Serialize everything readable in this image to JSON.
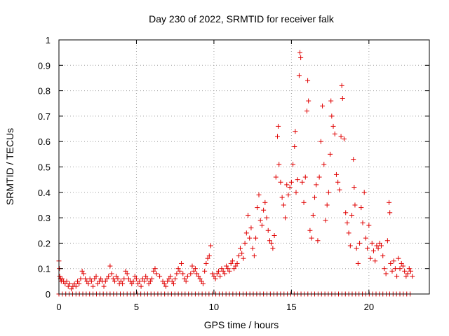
{
  "chart_data": {
    "type": "scatter",
    "title": "Day 230 of 2022, SRMTID for receiver falk",
    "xlabel": "GPS time / hours",
    "ylabel": "SRMTID / TECUs",
    "xlim": [
      0,
      23.9
    ],
    "ylim": [
      0,
      1
    ],
    "xticks": [
      0,
      5,
      10,
      15,
      20
    ],
    "xtick_labels": [
      "0",
      "5",
      "10",
      "15",
      "20"
    ],
    "yticks": [
      0,
      0.1,
      0.2,
      0.3,
      0.4,
      0.5,
      0.6,
      0.7,
      0.8,
      0.9,
      1
    ],
    "ytick_labels": [
      "0",
      "0.1",
      "0.2",
      "0.3",
      "0.4",
      "0.5",
      "0.6",
      "0.7",
      "0.8",
      "0.9",
      "1"
    ],
    "grid": true,
    "marker": "+",
    "color": "#e00000",
    "series": [
      {
        "name": "SRMTID",
        "points": [
          [
            0.0,
            0.13
          ],
          [
            0.03,
            0.1
          ],
          [
            0.05,
            0.07
          ],
          [
            0.1,
            0.06
          ],
          [
            0.15,
            0.05
          ],
          [
            0.2,
            0.06
          ],
          [
            0.3,
            0.05
          ],
          [
            0.4,
            0.04
          ],
          [
            0.5,
            0.05
          ],
          [
            0.6,
            0.03
          ],
          [
            0.7,
            0.04
          ],
          [
            0.8,
            0.02
          ],
          [
            0.9,
            0.03
          ],
          [
            1.0,
            0.04
          ],
          [
            1.1,
            0.03
          ],
          [
            1.2,
            0.05
          ],
          [
            1.3,
            0.04
          ],
          [
            1.4,
            0.06
          ],
          [
            1.5,
            0.09
          ],
          [
            1.6,
            0.08
          ],
          [
            1.7,
            0.06
          ],
          [
            1.8,
            0.05
          ],
          [
            1.9,
            0.04
          ],
          [
            2.0,
            0.06
          ],
          [
            2.1,
            0.05
          ],
          [
            2.2,
            0.03
          ],
          [
            2.3,
            0.06
          ],
          [
            2.4,
            0.07
          ],
          [
            2.5,
            0.04
          ],
          [
            2.6,
            0.05
          ],
          [
            2.7,
            0.06
          ],
          [
            2.8,
            0.05
          ],
          [
            2.9,
            0.03
          ],
          [
            3.0,
            0.05
          ],
          [
            3.1,
            0.06
          ],
          [
            3.2,
            0.07
          ],
          [
            3.3,
            0.11
          ],
          [
            3.4,
            0.08
          ],
          [
            3.5,
            0.06
          ],
          [
            3.6,
            0.05
          ],
          [
            3.7,
            0.07
          ],
          [
            3.8,
            0.06
          ],
          [
            3.9,
            0.04
          ],
          [
            4.0,
            0.05
          ],
          [
            4.1,
            0.04
          ],
          [
            4.2,
            0.06
          ],
          [
            4.3,
            0.09
          ],
          [
            4.4,
            0.08
          ],
          [
            4.5,
            0.06
          ],
          [
            4.6,
            0.05
          ],
          [
            4.7,
            0.04
          ],
          [
            4.8,
            0.05
          ],
          [
            4.9,
            0.07
          ],
          [
            5.0,
            0.06
          ],
          [
            5.1,
            0.04
          ],
          [
            5.2,
            0.05
          ],
          [
            5.3,
            0.03
          ],
          [
            5.4,
            0.06
          ],
          [
            5.5,
            0.05
          ],
          [
            5.6,
            0.07
          ],
          [
            5.7,
            0.06
          ],
          [
            5.8,
            0.04
          ],
          [
            5.9,
            0.05
          ],
          [
            6.0,
            0.06
          ],
          [
            6.1,
            0.09
          ],
          [
            6.2,
            0.1
          ],
          [
            6.3,
            0.08
          ],
          [
            6.5,
            0.07
          ],
          [
            6.7,
            0.05
          ],
          [
            6.8,
            0.04
          ],
          [
            6.9,
            0.03
          ],
          [
            7.0,
            0.05
          ],
          [
            7.1,
            0.06
          ],
          [
            7.2,
            0.07
          ],
          [
            7.3,
            0.05
          ],
          [
            7.4,
            0.04
          ],
          [
            7.5,
            0.06
          ],
          [
            7.6,
            0.08
          ],
          [
            7.7,
            0.1
          ],
          [
            7.8,
            0.09
          ],
          [
            7.9,
            0.12
          ],
          [
            8.0,
            0.08
          ],
          [
            8.1,
            0.06
          ],
          [
            8.2,
            0.05
          ],
          [
            8.3,
            0.07
          ],
          [
            8.5,
            0.08
          ],
          [
            8.6,
            0.11
          ],
          [
            8.7,
            0.09
          ],
          [
            8.8,
            0.1
          ],
          [
            8.9,
            0.08
          ],
          [
            9.0,
            0.07
          ],
          [
            9.1,
            0.06
          ],
          [
            9.2,
            0.05
          ],
          [
            9.3,
            0.04
          ],
          [
            9.4,
            0.09
          ],
          [
            9.5,
            0.12
          ],
          [
            9.6,
            0.14
          ],
          [
            9.7,
            0.15
          ],
          [
            9.8,
            0.19
          ],
          [
            9.9,
            0.08
          ],
          [
            10.0,
            0.07
          ],
          [
            10.1,
            0.06
          ],
          [
            10.2,
            0.08
          ],
          [
            10.3,
            0.09
          ],
          [
            10.4,
            0.07
          ],
          [
            10.5,
            0.1
          ],
          [
            10.6,
            0.09
          ],
          [
            10.7,
            0.08
          ],
          [
            10.8,
            0.11
          ],
          [
            10.9,
            0.1
          ],
          [
            11.0,
            0.09
          ],
          [
            11.1,
            0.12
          ],
          [
            11.2,
            0.13
          ],
          [
            11.3,
            0.1
          ],
          [
            11.4,
            0.11
          ],
          [
            11.5,
            0.12
          ],
          [
            11.6,
            0.15
          ],
          [
            11.7,
            0.18
          ],
          [
            11.8,
            0.16
          ],
          [
            11.9,
            0.14
          ],
          [
            12.0,
            0.2
          ],
          [
            12.1,
            0.24
          ],
          [
            12.2,
            0.31
          ],
          [
            12.3,
            0.22
          ],
          [
            12.4,
            0.26
          ],
          [
            12.5,
            0.18
          ],
          [
            12.6,
            0.15
          ],
          [
            12.7,
            0.22
          ],
          [
            12.8,
            0.34
          ],
          [
            12.9,
            0.39
          ],
          [
            13.0,
            0.29
          ],
          [
            13.1,
            0.27
          ],
          [
            13.2,
            0.33
          ],
          [
            13.3,
            0.36
          ],
          [
            13.4,
            0.3
          ],
          [
            13.5,
            0.25
          ],
          [
            13.6,
            0.21
          ],
          [
            13.7,
            0.2
          ],
          [
            13.8,
            0.18
          ],
          [
            13.9,
            0.23
          ],
          [
            14.0,
            0.46
          ],
          [
            14.1,
            0.62
          ],
          [
            14.15,
            0.66
          ],
          [
            14.2,
            0.51
          ],
          [
            14.3,
            0.44
          ],
          [
            14.4,
            0.38
          ],
          [
            14.5,
            0.35
          ],
          [
            14.6,
            0.3
          ],
          [
            14.7,
            0.43
          ],
          [
            14.8,
            0.39
          ],
          [
            14.9,
            0.42
          ],
          [
            15.0,
            0.44
          ],
          [
            15.1,
            0.51
          ],
          [
            15.2,
            0.58
          ],
          [
            15.25,
            0.64
          ],
          [
            15.3,
            0.4
          ],
          [
            15.4,
            0.45
          ],
          [
            15.5,
            0.86
          ],
          [
            15.55,
            0.95
          ],
          [
            15.6,
            0.93
          ],
          [
            15.7,
            0.44
          ],
          [
            15.8,
            0.36
          ],
          [
            15.9,
            0.46
          ],
          [
            16.0,
            0.72
          ],
          [
            16.05,
            0.84
          ],
          [
            16.1,
            0.76
          ],
          [
            16.2,
            0.25
          ],
          [
            16.3,
            0.22
          ],
          [
            16.4,
            0.31
          ],
          [
            16.5,
            0.38
          ],
          [
            16.6,
            0.43
          ],
          [
            16.7,
            0.21
          ],
          [
            16.8,
            0.46
          ],
          [
            16.9,
            0.6
          ],
          [
            17.0,
            0.74
          ],
          [
            17.1,
            0.51
          ],
          [
            17.2,
            0.29
          ],
          [
            17.3,
            0.35
          ],
          [
            17.4,
            0.4
          ],
          [
            17.5,
            0.55
          ],
          [
            17.55,
            0.76
          ],
          [
            17.6,
            0.7
          ],
          [
            17.7,
            0.66
          ],
          [
            17.8,
            0.63
          ],
          [
            17.9,
            0.47
          ],
          [
            18.0,
            0.44
          ],
          [
            18.1,
            0.41
          ],
          [
            18.2,
            0.62
          ],
          [
            18.25,
            0.82
          ],
          [
            18.3,
            0.77
          ],
          [
            18.4,
            0.61
          ],
          [
            18.5,
            0.32
          ],
          [
            18.6,
            0.28
          ],
          [
            18.7,
            0.24
          ],
          [
            18.8,
            0.19
          ],
          [
            18.9,
            0.31
          ],
          [
            19.0,
            0.53
          ],
          [
            19.05,
            0.42
          ],
          [
            19.1,
            0.35
          ],
          [
            19.2,
            0.18
          ],
          [
            19.3,
            0.12
          ],
          [
            19.4,
            0.2
          ],
          [
            19.5,
            0.34
          ],
          [
            19.6,
            0.28
          ],
          [
            19.7,
            0.4
          ],
          [
            19.8,
            0.22
          ],
          [
            19.9,
            0.18
          ],
          [
            20.0,
            0.27
          ],
          [
            20.1,
            0.14
          ],
          [
            20.2,
            0.2
          ],
          [
            20.3,
            0.17
          ],
          [
            20.4,
            0.13
          ],
          [
            20.5,
            0.19
          ],
          [
            20.6,
            0.18
          ],
          [
            20.7,
            0.2
          ],
          [
            20.8,
            0.19
          ],
          [
            20.9,
            0.15
          ],
          [
            21.0,
            0.1
          ],
          [
            21.1,
            0.08
          ],
          [
            21.2,
            0.21
          ],
          [
            21.3,
            0.36
          ],
          [
            21.35,
            0.32
          ],
          [
            21.4,
            0.12
          ],
          [
            21.5,
            0.09
          ],
          [
            21.6,
            0.13
          ],
          [
            21.7,
            0.1
          ],
          [
            21.8,
            0.07
          ],
          [
            21.9,
            0.14
          ],
          [
            22.0,
            0.1
          ],
          [
            22.1,
            0.12
          ],
          [
            22.2,
            0.11
          ],
          [
            22.3,
            0.09
          ],
          [
            22.4,
            0.07
          ],
          [
            22.5,
            0.08
          ],
          [
            22.6,
            0.1
          ],
          [
            22.7,
            0.09
          ],
          [
            22.8,
            0.07
          ]
        ]
      },
      {
        "name": "zero baseline",
        "x_start": 0,
        "x_end": 22.8,
        "x_step": 0.22,
        "y": 0
      }
    ]
  }
}
